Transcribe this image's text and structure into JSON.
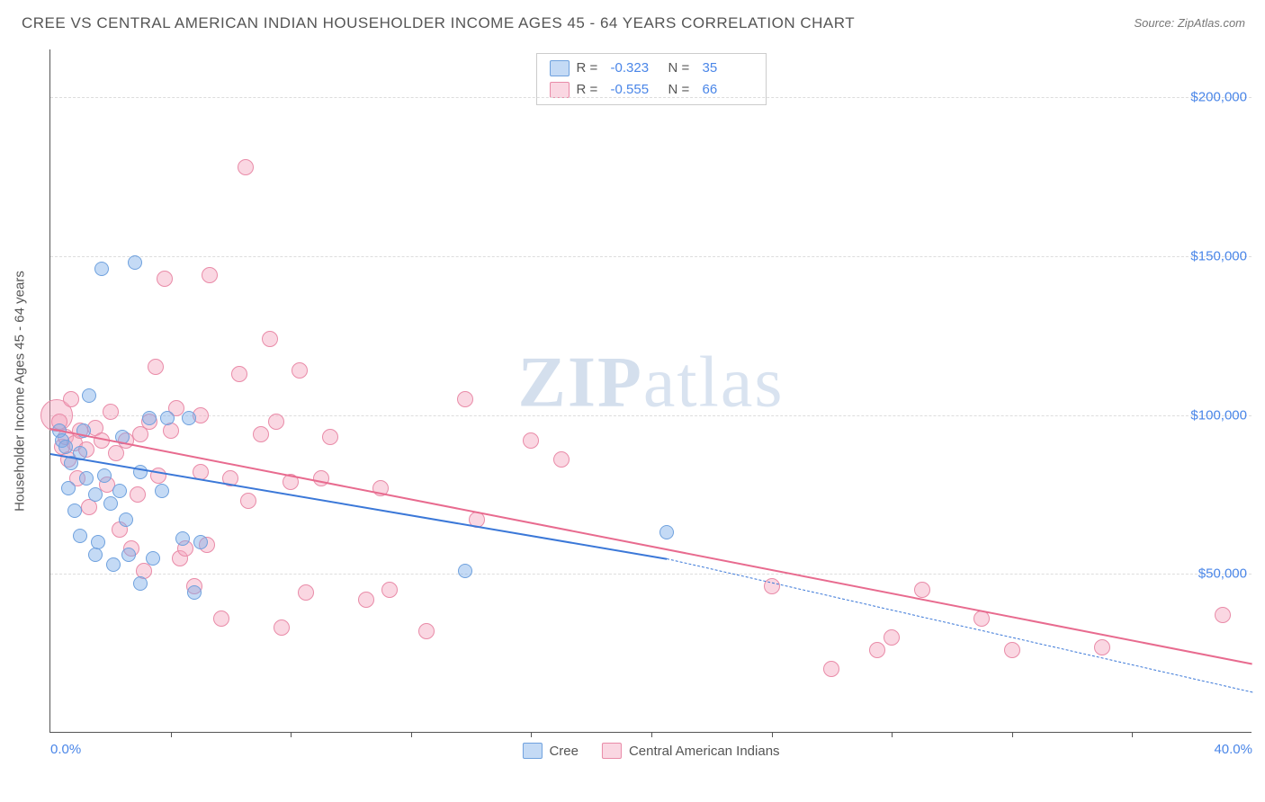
{
  "title": "CREE VS CENTRAL AMERICAN INDIAN HOUSEHOLDER INCOME AGES 45 - 64 YEARS CORRELATION CHART",
  "source": "Source: ZipAtlas.com",
  "ylabel": "Householder Income Ages 45 - 64 years",
  "watermark_a": "ZIP",
  "watermark_b": "atlas",
  "chart": {
    "type": "scatter",
    "background_color": "#ffffff",
    "grid_color": "#dddddd",
    "axis_color": "#555555",
    "xlim": [
      0,
      40
    ],
    "ylim": [
      0,
      215000
    ],
    "x_ticks_labels": [
      {
        "v": 0,
        "label": "0.0%",
        "align": "left"
      },
      {
        "v": 40,
        "label": "40.0%",
        "align": "right"
      }
    ],
    "x_minor_ticks": [
      4,
      8,
      12,
      16,
      20,
      24,
      28,
      32,
      36
    ],
    "y_ticks": [
      {
        "v": 50000,
        "label": "$50,000"
      },
      {
        "v": 100000,
        "label": "$100,000"
      },
      {
        "v": 150000,
        "label": "$150,000"
      },
      {
        "v": 200000,
        "label": "$200,000"
      }
    ],
    "series": [
      {
        "name": "Cree",
        "fill": "rgba(124, 172, 232, 0.45)",
        "stroke": "#6fa1de",
        "line_color": "#3b78d8",
        "R": "-0.323",
        "N": "35",
        "trend": {
          "x1": 0,
          "y1": 88000,
          "x2": 20.5,
          "y2": 55000,
          "solid": true
        },
        "trend_ext": {
          "x1": 20.5,
          "y1": 55000,
          "x2": 40,
          "y2": 13000
        },
        "dot_radius": 8,
        "points": [
          [
            0.3,
            95000
          ],
          [
            0.4,
            92000
          ],
          [
            0.5,
            90000
          ],
          [
            0.6,
            77000
          ],
          [
            0.7,
            85000
          ],
          [
            0.8,
            70000
          ],
          [
            1.0,
            88000
          ],
          [
            1.0,
            62000
          ],
          [
            1.1,
            95000
          ],
          [
            1.2,
            80000
          ],
          [
            1.3,
            106000
          ],
          [
            1.5,
            75000
          ],
          [
            1.5,
            56000
          ],
          [
            1.6,
            60000
          ],
          [
            1.7,
            146000
          ],
          [
            1.8,
            81000
          ],
          [
            2.0,
            72000
          ],
          [
            2.1,
            53000
          ],
          [
            2.3,
            76000
          ],
          [
            2.4,
            93000
          ],
          [
            2.5,
            67000
          ],
          [
            2.6,
            56000
          ],
          [
            2.8,
            148000
          ],
          [
            3.0,
            82000
          ],
          [
            3.0,
            47000
          ],
          [
            3.3,
            99000
          ],
          [
            3.4,
            55000
          ],
          [
            3.7,
            76000
          ],
          [
            3.9,
            99000
          ],
          [
            4.4,
            61000
          ],
          [
            4.6,
            99000
          ],
          [
            4.8,
            44000
          ],
          [
            5.0,
            60000
          ],
          [
            13.8,
            51000
          ],
          [
            20.5,
            63000
          ]
        ]
      },
      {
        "name": "Central American Indians",
        "fill": "rgba(244, 166, 190, 0.45)",
        "stroke": "#e98ba8",
        "line_color": "#e86b8f",
        "R": "-0.555",
        "N": "66",
        "trend": {
          "x1": 0,
          "y1": 96000,
          "x2": 40,
          "y2": 22000,
          "solid": true
        },
        "dot_radius": 9,
        "points": [
          [
            0.2,
            100000,
            18
          ],
          [
            0.3,
            98000
          ],
          [
            0.4,
            90000
          ],
          [
            0.5,
            93000
          ],
          [
            0.6,
            86000
          ],
          [
            0.7,
            105000
          ],
          [
            0.8,
            91000
          ],
          [
            0.9,
            80000
          ],
          [
            1.0,
            95000
          ],
          [
            1.2,
            89000
          ],
          [
            1.3,
            71000
          ],
          [
            1.5,
            96000
          ],
          [
            1.7,
            92000
          ],
          [
            1.9,
            78000
          ],
          [
            2.0,
            101000
          ],
          [
            2.2,
            88000
          ],
          [
            2.3,
            64000
          ],
          [
            2.5,
            92000
          ],
          [
            2.7,
            58000
          ],
          [
            2.9,
            75000
          ],
          [
            3.0,
            94000
          ],
          [
            3.1,
            51000
          ],
          [
            3.3,
            98000
          ],
          [
            3.5,
            115000
          ],
          [
            3.6,
            81000
          ],
          [
            3.8,
            143000
          ],
          [
            4.0,
            95000
          ],
          [
            4.2,
            102000
          ],
          [
            4.3,
            55000
          ],
          [
            4.5,
            58000
          ],
          [
            4.8,
            46000
          ],
          [
            5.0,
            82000
          ],
          [
            5.0,
            100000
          ],
          [
            5.2,
            59000
          ],
          [
            5.3,
            144000
          ],
          [
            5.7,
            36000
          ],
          [
            6.0,
            80000
          ],
          [
            6.3,
            113000
          ],
          [
            6.5,
            178000
          ],
          [
            6.6,
            73000
          ],
          [
            7.0,
            94000
          ],
          [
            7.3,
            124000
          ],
          [
            7.5,
            98000
          ],
          [
            7.7,
            33000
          ],
          [
            8.0,
            79000
          ],
          [
            8.3,
            114000
          ],
          [
            8.5,
            44000
          ],
          [
            9.0,
            80000
          ],
          [
            9.3,
            93000
          ],
          [
            10.5,
            42000
          ],
          [
            11.0,
            77000
          ],
          [
            11.3,
            45000
          ],
          [
            12.5,
            32000
          ],
          [
            13.8,
            105000
          ],
          [
            14.2,
            67000
          ],
          [
            16.0,
            92000
          ],
          [
            17.0,
            86000
          ],
          [
            24.0,
            46000
          ],
          [
            26.0,
            20000
          ],
          [
            27.5,
            26000
          ],
          [
            28.0,
            30000
          ],
          [
            29.0,
            45000
          ],
          [
            31.0,
            36000
          ],
          [
            32.0,
            26000
          ],
          [
            35.0,
            27000
          ],
          [
            39.0,
            37000
          ]
        ]
      }
    ]
  }
}
